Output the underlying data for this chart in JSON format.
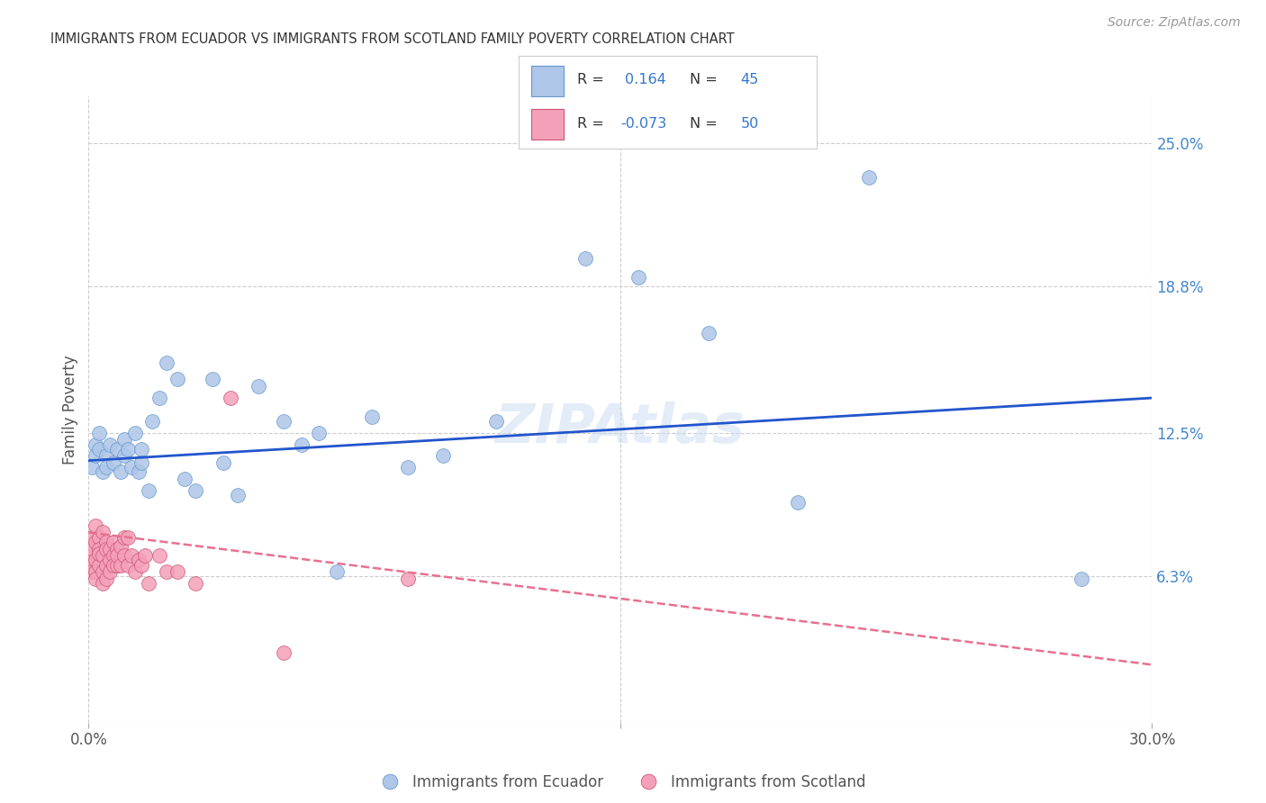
{
  "title": "IMMIGRANTS FROM ECUADOR VS IMMIGRANTS FROM SCOTLAND FAMILY POVERTY CORRELATION CHART",
  "source": "Source: ZipAtlas.com",
  "ylabel": "Family Poverty",
  "x_min": 0.0,
  "x_max": 0.3,
  "y_min": 0.0,
  "y_max": 0.27,
  "yticks_right": [
    0.0,
    0.063,
    0.125,
    0.188,
    0.25
  ],
  "ytick_labels_right": [
    "",
    "6.3%",
    "12.5%",
    "18.8%",
    "25.0%"
  ],
  "color_ecuador": "#aec6e8",
  "color_scotland": "#f4a0b8",
  "color_trendline_ecuador": "#2255cc",
  "color_trendline_scotland": "#e87090",
  "watermark": "ZIPAtlas",
  "ecuador_x": [
    0.001,
    0.002,
    0.002,
    0.003,
    0.003,
    0.004,
    0.005,
    0.005,
    0.006,
    0.007,
    0.008,
    0.009,
    0.01,
    0.01,
    0.011,
    0.012,
    0.013,
    0.014,
    0.015,
    0.015,
    0.017,
    0.018,
    0.02,
    0.022,
    0.025,
    0.027,
    0.03,
    0.035,
    0.038,
    0.042,
    0.048,
    0.055,
    0.06,
    0.065,
    0.07,
    0.08,
    0.09,
    0.1,
    0.115,
    0.14,
    0.155,
    0.175,
    0.2,
    0.22,
    0.28
  ],
  "ecuador_y": [
    0.11,
    0.115,
    0.12,
    0.118,
    0.125,
    0.108,
    0.115,
    0.11,
    0.12,
    0.112,
    0.118,
    0.108,
    0.122,
    0.115,
    0.118,
    0.11,
    0.125,
    0.108,
    0.118,
    0.112,
    0.1,
    0.13,
    0.14,
    0.155,
    0.148,
    0.105,
    0.1,
    0.148,
    0.112,
    0.098,
    0.145,
    0.13,
    0.12,
    0.125,
    0.065,
    0.132,
    0.11,
    0.115,
    0.13,
    0.2,
    0.192,
    0.168,
    0.095,
    0.235,
    0.062
  ],
  "scotland_x": [
    0.001,
    0.001,
    0.001,
    0.001,
    0.001,
    0.002,
    0.002,
    0.002,
    0.002,
    0.002,
    0.003,
    0.003,
    0.003,
    0.003,
    0.004,
    0.004,
    0.004,
    0.004,
    0.005,
    0.005,
    0.005,
    0.005,
    0.006,
    0.006,
    0.006,
    0.007,
    0.007,
    0.007,
    0.008,
    0.008,
    0.008,
    0.009,
    0.009,
    0.01,
    0.01,
    0.011,
    0.011,
    0.012,
    0.013,
    0.014,
    0.015,
    0.016,
    0.017,
    0.02,
    0.022,
    0.025,
    0.03,
    0.04,
    0.055,
    0.09
  ],
  "scotland_y": [
    0.072,
    0.068,
    0.08,
    0.075,
    0.065,
    0.085,
    0.078,
    0.07,
    0.065,
    0.062,
    0.08,
    0.075,
    0.068,
    0.073,
    0.082,
    0.072,
    0.065,
    0.06,
    0.078,
    0.068,
    0.075,
    0.062,
    0.075,
    0.07,
    0.065,
    0.072,
    0.068,
    0.078,
    0.075,
    0.068,
    0.072,
    0.076,
    0.068,
    0.08,
    0.072,
    0.08,
    0.068,
    0.072,
    0.065,
    0.07,
    0.068,
    0.072,
    0.06,
    0.072,
    0.065,
    0.065,
    0.06,
    0.14,
    0.03,
    0.062
  ],
  "trendline_ec_x0": 0.0,
  "trendline_ec_x1": 0.3,
  "trendline_ec_y0": 0.113,
  "trendline_ec_y1": 0.14,
  "trendline_sc_x0": 0.0,
  "trendline_sc_x1": 0.3,
  "trendline_sc_y0": 0.082,
  "trendline_sc_y1": 0.025
}
